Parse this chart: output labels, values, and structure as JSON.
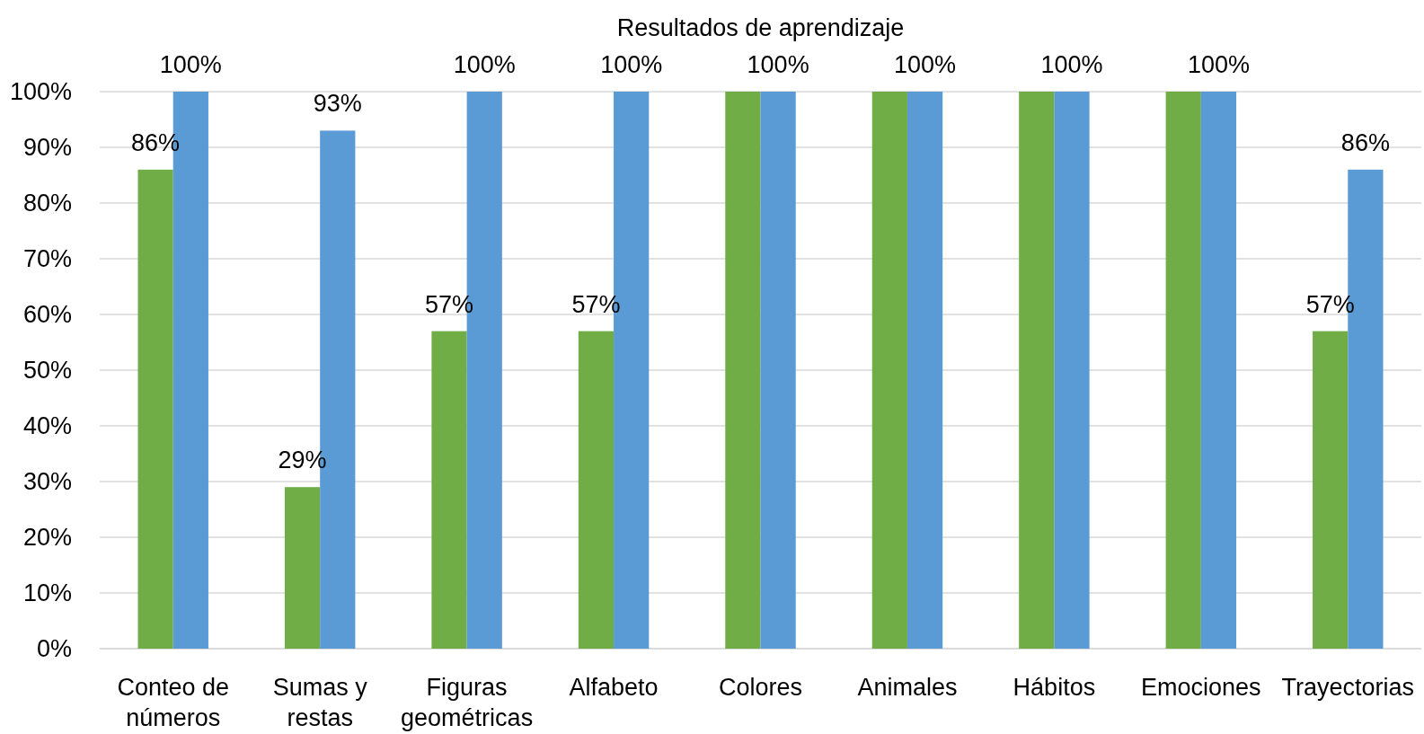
{
  "chart_data": {
    "type": "bar",
    "title": "Resultados de aprendizaje",
    "categories": [
      "Conteo de números",
      "Sumas y restas",
      "Figuras geométricas",
      "Alfabeto",
      "Colores",
      "Animales",
      "Hábitos",
      "Emociones",
      "Trayectorias"
    ],
    "series": [
      {
        "color": "#70ad47",
        "values": [
          86,
          29,
          57,
          57,
          100,
          100,
          100,
          100,
          57
        ],
        "value_labels": [
          "86%",
          "29%",
          "57%",
          "57%",
          null,
          null,
          null,
          null,
          "57%"
        ]
      },
      {
        "color": "#5b9bd5",
        "values": [
          100,
          93,
          100,
          100,
          100,
          100,
          100,
          100,
          86
        ],
        "value_labels": [
          "100%",
          "93%",
          "100%",
          "100%",
          "100%",
          "100%",
          "100%",
          "100%",
          "86%"
        ]
      }
    ],
    "ylim": [
      0,
      100
    ],
    "yticks": [
      {
        "value": 0,
        "label": "0%"
      },
      {
        "value": 10,
        "label": "10%"
      },
      {
        "value": 20,
        "label": "20%"
      },
      {
        "value": 30,
        "label": "30%"
      },
      {
        "value": 40,
        "label": "40%"
      },
      {
        "value": 50,
        "label": "50%"
      },
      {
        "value": 60,
        "label": "60%"
      },
      {
        "value": 70,
        "label": "70%"
      },
      {
        "value": 80,
        "label": "80%"
      },
      {
        "value": 90,
        "label": "90%"
      },
      {
        "value": 100,
        "label": "100%"
      }
    ],
    "grid": "y"
  }
}
